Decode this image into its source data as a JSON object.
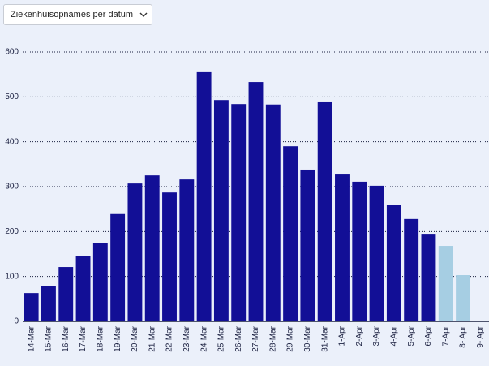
{
  "controls": {
    "dropdown": "Ziekenhuisopnames per datum"
  },
  "chart_data": {
    "type": "bar",
    "categories": [
      "14-Mar",
      "15-Mar",
      "16-Mar",
      "17-Mar",
      "18-Mar",
      "19-Mar",
      "20-Mar",
      "21-Mar",
      "22-Mar",
      "23-Mar",
      "24-Mar",
      "25-Mar",
      "26-Mar",
      "27-Mar",
      "28-Mar",
      "29-Mar",
      "30-Mar",
      "31-Mar",
      "1-Apr",
      "2-Apr",
      "3-Apr",
      "4-Apr",
      "5-Apr",
      "6-Apr",
      "7-Apr",
      "8- Apr",
      "9- Apr"
    ],
    "values": [
      63,
      78,
      121,
      145,
      174,
      239,
      307,
      325,
      287,
      316,
      555,
      493,
      484,
      533,
      483,
      390,
      338,
      488,
      327,
      311,
      302,
      260,
      228,
      195,
      168,
      103,
      null
    ],
    "colors": [
      "#120f96",
      "#120f96",
      "#120f96",
      "#120f96",
      "#120f96",
      "#120f96",
      "#120f96",
      "#120f96",
      "#120f96",
      "#120f96",
      "#120f96",
      "#120f96",
      "#120f96",
      "#120f96",
      "#120f96",
      "#120f96",
      "#120f96",
      "#120f96",
      "#120f96",
      "#120f96",
      "#120f96",
      "#120f96",
      "#120f96",
      "#120f96",
      "#a6cee3",
      "#a6cee3",
      "#a6cee3"
    ],
    "ylim": [
      0,
      600
    ],
    "yticks": [
      0,
      100,
      200,
      300,
      400,
      500,
      600
    ],
    "grid": true
  }
}
